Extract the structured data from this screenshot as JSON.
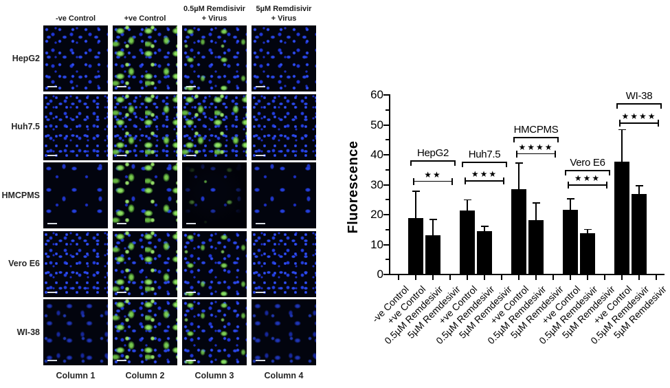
{
  "micro_panel": {
    "column_headers": [
      {
        "l1": "",
        "l2": "-ve Control"
      },
      {
        "l1": "",
        "l2": "+ve Control"
      },
      {
        "l1": "0.5µM Remdisivir",
        "l2": "+ Virus"
      },
      {
        "l1": "5µM Remdisivir",
        "l2": "+ Virus"
      }
    ],
    "row_labels": [
      "HepG2",
      "Huh7.5",
      "HMCPMS",
      "Vero E6",
      "WI-38"
    ],
    "column_footers": [
      "Column 1",
      "Column 2",
      "Column 3",
      "Column 4"
    ],
    "stain_colors": {
      "nuclei_blue": "#2946e4",
      "viral_green": "#8ade55",
      "background": "#02040e"
    },
    "tiles": [
      {
        "blue": "normal",
        "green": 0
      },
      {
        "blue": "normal",
        "green": 3
      },
      {
        "blue": "normal",
        "green": 2
      },
      {
        "blue": "normal",
        "green": 0
      },
      {
        "blue": "dense",
        "green": 0
      },
      {
        "blue": "dense",
        "green": 3
      },
      {
        "blue": "dense",
        "green": 3
      },
      {
        "blue": "dense",
        "green": 0
      },
      {
        "blue": "sparse",
        "green": 0
      },
      {
        "blue": "sparse",
        "green": 3
      },
      {
        "blue": "sparse",
        "green": 1,
        "vignette": true
      },
      {
        "blue": "sparse",
        "green": 0
      },
      {
        "blue": "dense",
        "green": 0
      },
      {
        "blue": "normal",
        "green": 3
      },
      {
        "blue": "normal",
        "green": 2
      },
      {
        "blue": "dense",
        "green": 0
      },
      {
        "blue": "soft",
        "green": 0
      },
      {
        "blue": "normal",
        "green": 3
      },
      {
        "blue": "normal",
        "green": 2
      },
      {
        "blue": "soft",
        "green": 0
      }
    ]
  },
  "chart_data": {
    "type": "bar",
    "title": "",
    "xlabel": "",
    "ylabel": "Fluorescence",
    "ylim": [
      0,
      60
    ],
    "y_major_ticks": [
      0,
      10,
      20,
      30,
      40,
      50,
      60
    ],
    "y_minor_step": 5,
    "grid": false,
    "legend": false,
    "bar_color": "#000000",
    "x": [
      "-ve Control",
      "+ve Control",
      "0.5µM Remdesivir",
      "5µM Remdesivir",
      "+ve Control",
      "0.5µM Remdesivir",
      "5µM Remdesivir",
      "+ve Control",
      "0.5µM Remdesivir",
      "5µM Remdesivir",
      "+ve Control",
      "0.5µM Remdesivir",
      "5µM Remdesivir",
      "+ve Control",
      "0.5µM Remdesivir",
      "5µM Remdesivir"
    ],
    "values": [
      0,
      18.8,
      13.2,
      0,
      21.4,
      14.4,
      0,
      28.5,
      18.1,
      0,
      21.7,
      13.7,
      0,
      37.8,
      26.8,
      0
    ],
    "errors": [
      0,
      9.0,
      5.2,
      0,
      3.5,
      1.7,
      0,
      8.7,
      5.8,
      0,
      3.6,
      1.4,
      0,
      10.6,
      2.8,
      0
    ],
    "groups": [
      {
        "name": "HepG2",
        "significance": "★★",
        "ticks": [
          1,
          3
        ],
        "bracket_y": 38.2,
        "sig_y": 31.3
      },
      {
        "name": "Huh7.5",
        "significance": "★★★",
        "ticks": [
          4,
          6
        ],
        "bracket_y": 37.7,
        "sig_y": 31.5
      },
      {
        "name": "HMCPMS",
        "significance": "★★★★",
        "ticks": [
          7,
          9
        ],
        "bracket_y": 46.0,
        "sig_y": 40.5
      },
      {
        "name": "Vero E6",
        "significance": "★★★",
        "ticks": [
          10,
          12
        ],
        "bracket_y": 34.9,
        "sig_y": 30.1
      },
      {
        "name": "WI-38",
        "significance": "★★★★",
        "ticks": [
          13,
          15
        ],
        "bracket_y": 57.2,
        "sig_y": 50.8
      }
    ]
  }
}
